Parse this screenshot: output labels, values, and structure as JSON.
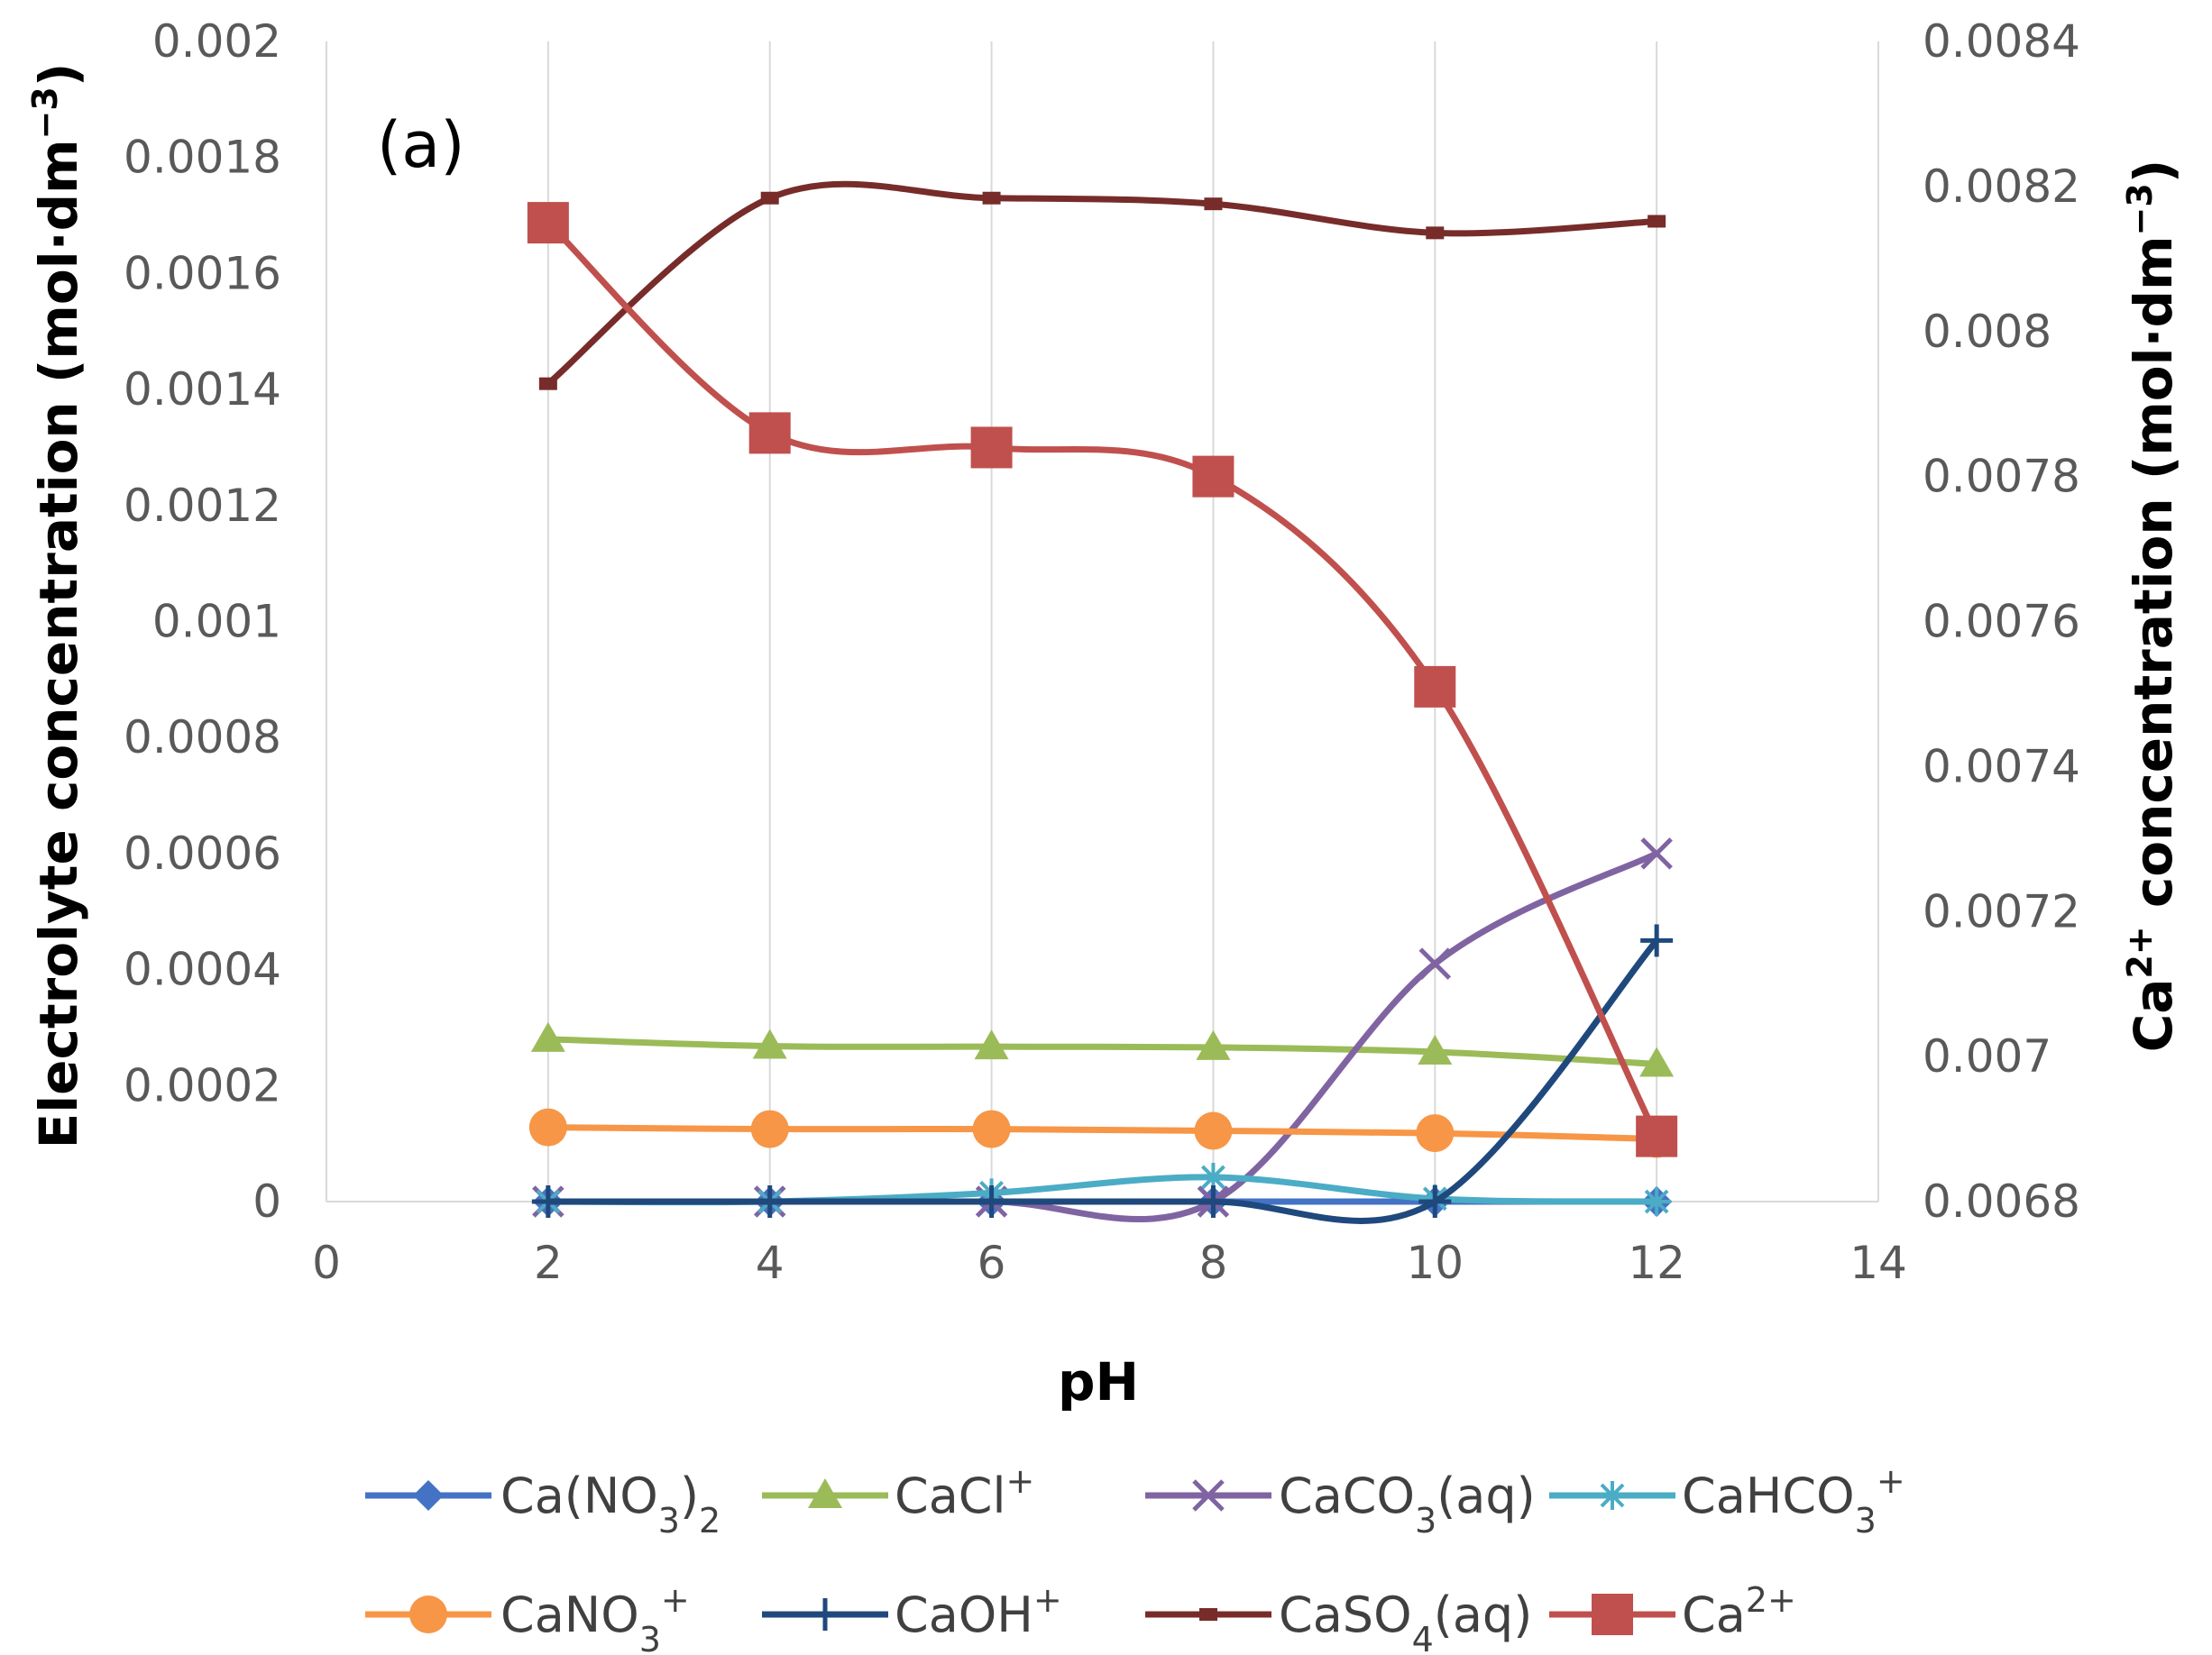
{
  "chart_data": {
    "type": "line",
    "panel_label": "(a)",
    "xlabel": "pH",
    "ylabel_left": {
      "main": "Electrolyte concentration (mol·dm",
      "sup": "−3",
      "close": ")"
    },
    "ylabel_right": {
      "pre": "Ca",
      "sup1": "2+",
      "main": " concentration (mol·dm",
      "sup2": "−3",
      "close": ")"
    },
    "xlim": [
      0,
      14
    ],
    "x_ticks": [
      "0",
      "2",
      "4",
      "6",
      "8",
      "10",
      "12",
      "14"
    ],
    "ylim_left": [
      0,
      0.002
    ],
    "y_ticks_left": [
      "0",
      "0.0002",
      "0.0004",
      "0.0006",
      "0.0008",
      "0.001",
      "0.0012",
      "0.0014",
      "0.0016",
      "0.0018",
      "0.002"
    ],
    "ylim_right": [
      0.0068,
      0.0084
    ],
    "y_ticks_right": [
      "0.0068",
      "0.007",
      "0.0072",
      "0.0074",
      "0.0076",
      "0.0078",
      "0.008",
      "0.0082",
      "0.0084"
    ],
    "grid": "vertical",
    "x": [
      2,
      4,
      6,
      8,
      10,
      12
    ],
    "series": [
      {
        "key": "cano32",
        "name": "Ca(NO3)2",
        "label": {
          "base": "Ca(NO",
          "sub": "3",
          "rest": ")",
          "sub2": "2",
          "sup": ""
        },
        "axis": "left",
        "color": "#4472C4",
        "marker": "diamond",
        "values": [
          0,
          0,
          0,
          0,
          0,
          0
        ]
      },
      {
        "key": "cacl",
        "name": "CaCl+",
        "label": {
          "base": "CaCl",
          "sub": "",
          "rest": "",
          "sub2": "",
          "sup": "+"
        },
        "axis": "left",
        "color": "#9BBB59",
        "marker": "triangle",
        "values": [
          0.00028,
          0.000268,
          0.000267,
          0.000266,
          0.000258,
          0.000237
        ]
      },
      {
        "key": "caco3",
        "name": "CaCO3(aq)",
        "label": {
          "base": "CaCO",
          "sub": "3",
          "rest": "(aq)",
          "sub2": "",
          "sup": ""
        },
        "axis": "left",
        "color": "#8064A2",
        "marker": "x",
        "values": [
          0,
          0,
          0,
          0,
          0.00041,
          0.0006
        ]
      },
      {
        "key": "cahco3",
        "name": "CaHCO3+",
        "label": {
          "base": "CaHCO",
          "sub": "3",
          "rest": "",
          "sub2": "",
          "sup": "+"
        },
        "axis": "left",
        "color": "#4BACC6",
        "marker": "star",
        "values": [
          0,
          0,
          1.5e-05,
          4.2e-05,
          5e-06,
          0
        ]
      },
      {
        "key": "cano3",
        "name": "CaNO3+",
        "label": {
          "base": "CaNO",
          "sub": "3",
          "rest": "",
          "sub2": "",
          "sup": "+"
        },
        "axis": "left",
        "color": "#F79646",
        "marker": "circle",
        "values": [
          0.000128,
          0.000125,
          0.000125,
          0.000122,
          0.000118,
          0.000108
        ]
      },
      {
        "key": "caoh",
        "name": "CaOH+",
        "label": {
          "base": "CaOH",
          "sub": "",
          "rest": "",
          "sub2": "",
          "sup": "+"
        },
        "axis": "left",
        "color": "#1F497D",
        "marker": "plus",
        "values": [
          0,
          0,
          0,
          0,
          0,
          0.00045
        ]
      },
      {
        "key": "caso4",
        "name": "CaSO4(aq)",
        "label": {
          "base": "CaSO",
          "sub": "4",
          "rest": "(aq)",
          "sub2": "",
          "sup": ""
        },
        "axis": "left",
        "color": "#772C2A",
        "marker": "dash",
        "values": [
          0.00141,
          0.00173,
          0.00173,
          0.00172,
          0.00167,
          0.00169
        ]
      },
      {
        "key": "ca2",
        "name": "Ca2+",
        "label": {
          "base": "Ca",
          "sub": "",
          "rest": "",
          "sub2": "",
          "sup": "2+"
        },
        "axis": "right",
        "color": "#C0504D",
        "marker": "square",
        "values": [
          0.00815,
          0.00786,
          0.00784,
          0.0078,
          0.00751,
          0.00689
        ]
      }
    ]
  }
}
